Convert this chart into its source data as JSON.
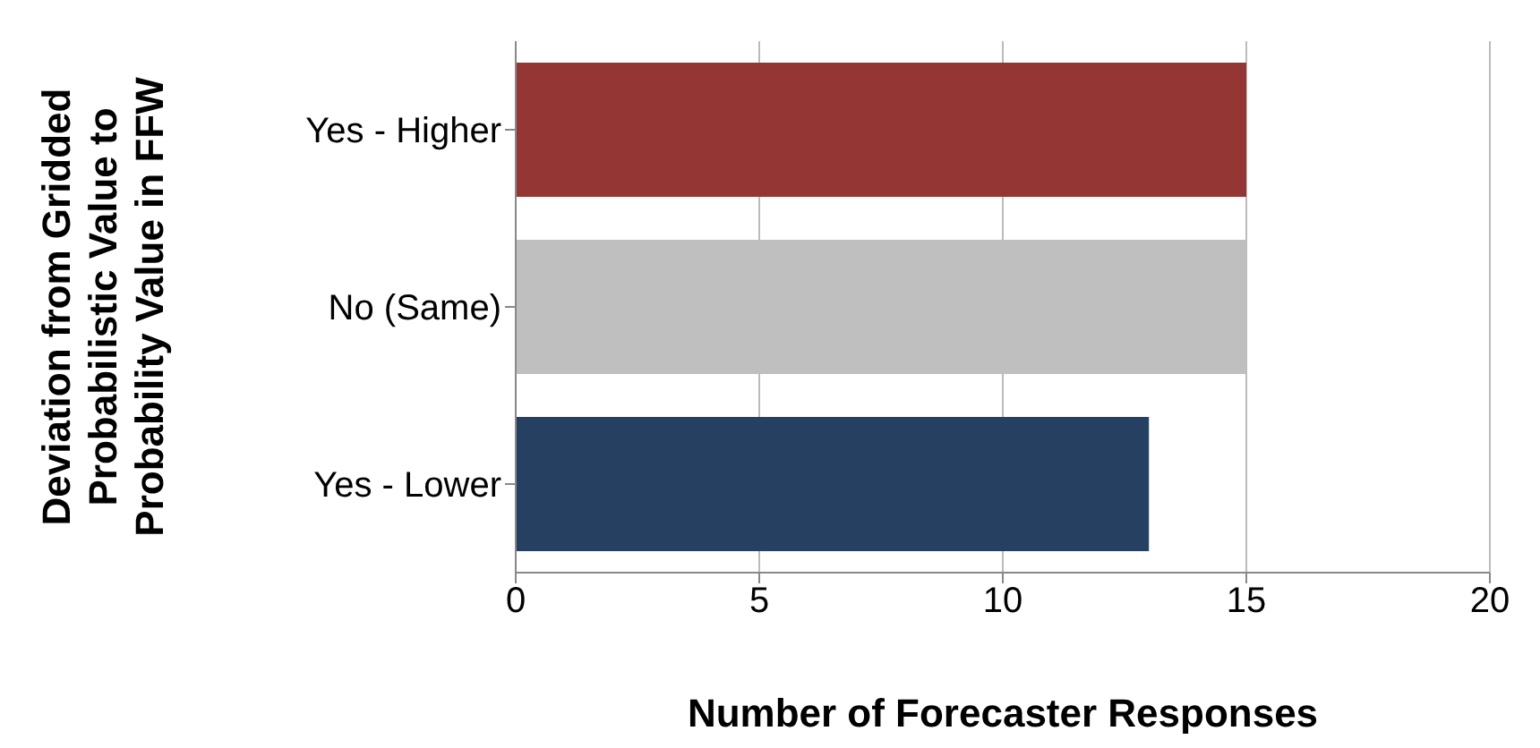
{
  "chart_data": {
    "type": "bar",
    "orientation": "horizontal",
    "xlabel": "Number of Forecaster Responses",
    "ylabel": "Deviation from Gridded\nProbabilistic Value to\nProbability Value in FFW",
    "categories": [
      "Yes - Higher",
      "No (Same)",
      "Yes - Lower"
    ],
    "values": [
      15,
      15,
      13
    ],
    "colors": [
      "#943634",
      "#bfbfbf",
      "#254061"
    ],
    "xlim": [
      0,
      20
    ],
    "xticks": [
      0,
      5,
      10,
      15,
      20
    ],
    "grid": "x",
    "legend": false
  }
}
